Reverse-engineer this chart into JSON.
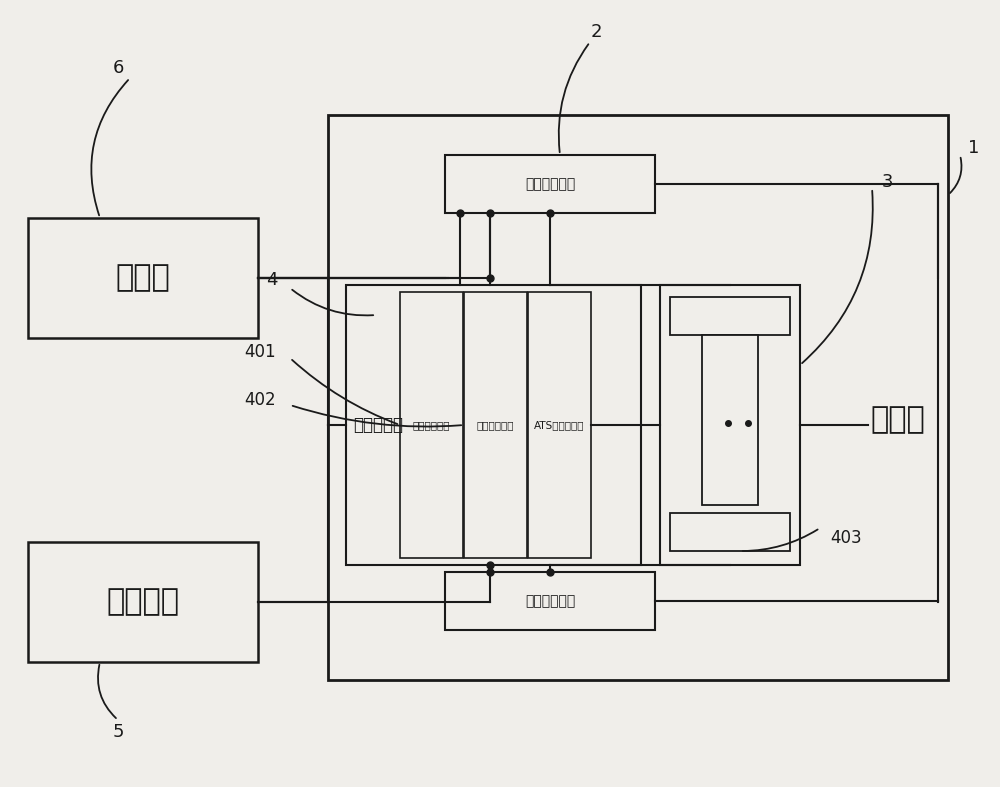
{
  "bg_color": "#f0eeea",
  "line_color": "#1a1a1a",
  "main_power_label": "主电源",
  "backup_power_label": "备用电源",
  "consumer_label": "用电器",
  "chip_label": "电流检测芯片",
  "controller_label": "控制器模块",
  "current_compare_label": "电流比对模块",
  "current_abnormal_label": "电流异常模块",
  "ats_label": "ATS控制器模块",
  "label_1": "1",
  "label_2": "2",
  "label_3": "3",
  "label_4": "4",
  "label_5": "5",
  "label_6": "6",
  "label_401": "401",
  "label_402": "402",
  "label_403": "403"
}
